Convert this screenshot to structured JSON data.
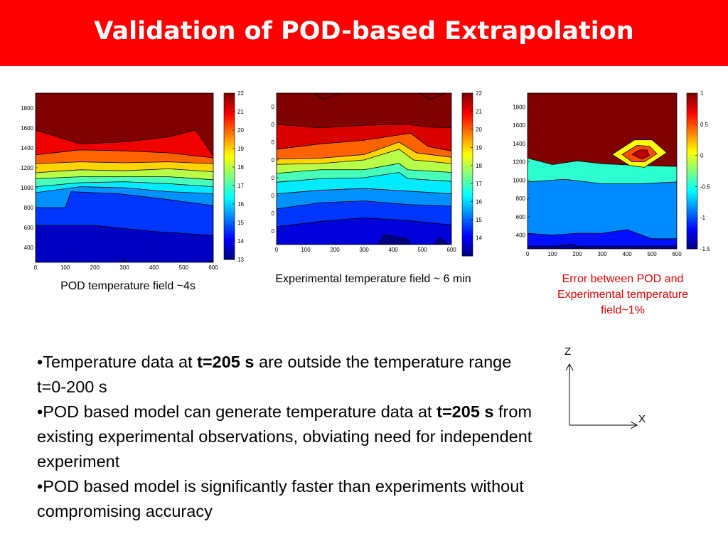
{
  "slide": {
    "title": "Validation of POD-based Extrapolation",
    "colors": {
      "header": "#fe0000",
      "title_text": "#ffffff",
      "error_caption": "#e60000"
    }
  },
  "chart_data": [
    {
      "type": "heatmap",
      "subtype": "filled contour",
      "caption": "POD temperature field ~4s",
      "xticks": [
        "0",
        "100",
        "200",
        "300",
        "400",
        "500",
        "600"
      ],
      "yticks": [
        "400",
        "600",
        "800",
        "1000",
        "1200",
        "1400",
        "1600",
        "1800"
      ],
      "xlim": [
        0,
        600
      ],
      "ylim": [
        250,
        1950
      ],
      "colorbar": {
        "min": 13,
        "max": 22,
        "ticks": [
          "13",
          "14",
          "15",
          "16",
          "17",
          "18",
          "19",
          "20",
          "21",
          "22"
        ]
      },
      "bands": [
        {
          "v": 13.6,
          "top": [
            [
              0,
              620
            ],
            [
              200,
              620
            ],
            [
              400,
              560
            ],
            [
              600,
              520
            ]
          ]
        },
        {
          "v": 14.6,
          "top": [
            [
              0,
              800
            ],
            [
              100,
              800
            ],
            [
              120,
              960
            ],
            [
              280,
              940
            ],
            [
              450,
              880
            ],
            [
              600,
              820
            ]
          ]
        },
        {
          "v": 15.4,
          "top": [
            [
              0,
              950
            ],
            [
              150,
              1010
            ],
            [
              300,
              1000
            ],
            [
              450,
              960
            ],
            [
              600,
              940
            ]
          ]
        },
        {
          "v": 16.2,
          "top": [
            [
              0,
              1010
            ],
            [
              150,
              1050
            ],
            [
              300,
              1060
            ],
            [
              450,
              1040
            ],
            [
              600,
              1010
            ]
          ]
        },
        {
          "v": 17.0,
          "top": [
            [
              0,
              1090
            ],
            [
              150,
              1110
            ],
            [
              300,
              1110
            ],
            [
              450,
              1110
            ],
            [
              600,
              1080
            ]
          ]
        },
        {
          "v": 18.0,
          "top": [
            [
              0,
              1150
            ],
            [
              150,
              1180
            ],
            [
              300,
              1170
            ],
            [
              450,
              1190
            ],
            [
              600,
              1160
            ]
          ]
        },
        {
          "v": 19.0,
          "top": [
            [
              0,
              1240
            ],
            [
              150,
              1260
            ],
            [
              300,
              1250
            ],
            [
              450,
              1260
            ],
            [
              600,
              1240
            ]
          ]
        },
        {
          "v": 20.0,
          "top": [
            [
              0,
              1330
            ],
            [
              150,
              1380
            ],
            [
              300,
              1370
            ],
            [
              450,
              1350
            ],
            [
              600,
              1300
            ]
          ]
        },
        {
          "v": 21.0,
          "top": [
            [
              0,
              1580
            ],
            [
              150,
              1440
            ],
            [
              300,
              1460
            ],
            [
              450,
              1510
            ],
            [
              540,
              1580
            ],
            [
              600,
              1320
            ]
          ]
        }
      ],
      "blobs": [
        {
          "v": 12.8,
          "pts": [
            [
              290,
              250
            ],
            [
              300,
              275
            ],
            [
              310,
              250
            ]
          ]
        },
        {
          "v": 12.8,
          "pts": [
            [
              580,
              250
            ],
            [
              595,
              270
            ],
            [
              600,
              250
            ]
          ]
        }
      ]
    },
    {
      "type": "heatmap",
      "subtype": "filled contour",
      "caption": "Experimental temperature field ~ 6 min",
      "xticks": [
        "0",
        "100",
        "200",
        "300",
        "400",
        "500",
        "600"
      ],
      "yticks": [
        "0",
        "0",
        "0",
        "0",
        "0",
        "0",
        "0",
        "0"
      ],
      "xlim": [
        0,
        600
      ],
      "ylim": [
        250,
        1950
      ],
      "colorbar": {
        "min": 13,
        "max": 22,
        "ticks": [
          "14",
          "15",
          "16",
          "17",
          "18",
          "19",
          "20",
          "21",
          "22"
        ]
      },
      "bands": [
        {
          "v": 13.8,
          "top": [
            [
              0,
              450
            ],
            [
              150,
              510
            ],
            [
              300,
              550
            ],
            [
              450,
              520
            ],
            [
              600,
              470
            ]
          ]
        },
        {
          "v": 14.6,
          "top": [
            [
              0,
              650
            ],
            [
              150,
              720
            ],
            [
              300,
              740
            ],
            [
              450,
              700
            ],
            [
              600,
              680
            ]
          ]
        },
        {
          "v": 15.4,
          "top": [
            [
              0,
              820
            ],
            [
              150,
              860
            ],
            [
              300,
              880
            ],
            [
              450,
              850
            ],
            [
              600,
              820
            ]
          ]
        },
        {
          "v": 16.2,
          "top": [
            [
              0,
              950
            ],
            [
              150,
              990
            ],
            [
              300,
              1000
            ],
            [
              420,
              1060
            ],
            [
              450,
              990
            ],
            [
              600,
              960
            ]
          ]
        },
        {
          "v": 17.0,
          "top": [
            [
              0,
              1050
            ],
            [
              150,
              1090
            ],
            [
              300,
              1090
            ],
            [
              420,
              1160
            ],
            [
              450,
              1090
            ],
            [
              600,
              1060
            ]
          ]
        },
        {
          "v": 18.0,
          "top": [
            [
              0,
              1150
            ],
            [
              150,
              1160
            ],
            [
              300,
              1200
            ],
            [
              420,
              1320
            ],
            [
              470,
              1200
            ],
            [
              600,
              1160
            ]
          ]
        },
        {
          "v": 19.0,
          "top": [
            [
              0,
              1210
            ],
            [
              150,
              1220
            ],
            [
              300,
              1260
            ],
            [
              420,
              1400
            ],
            [
              480,
              1280
            ],
            [
              600,
              1230
            ]
          ]
        },
        {
          "v": 20.0,
          "top": [
            [
              0,
              1320
            ],
            [
              150,
              1380
            ],
            [
              300,
              1420
            ],
            [
              460,
              1500
            ],
            [
              520,
              1350
            ],
            [
              600,
              1300
            ]
          ]
        },
        {
          "v": 21.2,
          "top": [
            [
              0,
              1600
            ],
            [
              150,
              1560
            ],
            [
              300,
              1590
            ],
            [
              450,
              1600
            ],
            [
              520,
              1570
            ],
            [
              600,
              1560
            ]
          ]
        }
      ],
      "blobs": [
        {
          "v": 22.6,
          "pts": [
            [
              130,
              1950
            ],
            [
              160,
              1880
            ],
            [
              220,
              1950
            ]
          ]
        },
        {
          "v": 22.6,
          "pts": [
            [
              490,
              1950
            ],
            [
              530,
              1880
            ],
            [
              580,
              1950
            ]
          ]
        },
        {
          "v": 13.0,
          "pts": [
            [
              350,
              250
            ],
            [
              370,
              360
            ],
            [
              450,
              310
            ],
            [
              460,
              250
            ]
          ]
        },
        {
          "v": 13.0,
          "pts": [
            [
              540,
              250
            ],
            [
              560,
              330
            ],
            [
              590,
              250
            ]
          ]
        }
      ]
    },
    {
      "type": "heatmap",
      "subtype": "filled contour",
      "caption": "Error between POD and Experimental temperature field~1%",
      "xticks": [
        "0",
        "100",
        "200",
        "300",
        "400",
        "500",
        "600"
      ],
      "yticks": [
        "400",
        "600",
        "800",
        "1000",
        "1200",
        "1400",
        "1600",
        "1800"
      ],
      "xlim": [
        0,
        600
      ],
      "ylim": [
        250,
        1950
      ],
      "colorbar": {
        "min": -1.5,
        "max": 1,
        "ticks": [
          "-1.5",
          "-1",
          "-0.5",
          "0",
          "0.5",
          "1"
        ]
      },
      "bands": [
        {
          "v": -1.45,
          "top": [
            [
              0,
              280
            ],
            [
              150,
              280
            ],
            [
              300,
              280
            ],
            [
              450,
              280
            ],
            [
              600,
              280
            ]
          ]
        },
        {
          "v": -1.15,
          "top": [
            [
              0,
              420
            ],
            [
              100,
              400
            ],
            [
              200,
              420
            ],
            [
              300,
              420
            ],
            [
              400,
              460
            ],
            [
              500,
              360
            ],
            [
              600,
              360
            ]
          ]
        },
        {
          "v": -0.85,
          "top": [
            [
              0,
              980
            ],
            [
              150,
              1010
            ],
            [
              300,
              960
            ],
            [
              450,
              960
            ],
            [
              600,
              980
            ]
          ]
        },
        {
          "v": -0.45,
          "top": [
            [
              0,
              1240
            ],
            [
              100,
              1170
            ],
            [
              200,
              1210
            ],
            [
              300,
              1180
            ],
            [
              450,
              1160
            ],
            [
              600,
              1150
            ]
          ]
        }
      ],
      "blobs": [
        {
          "v": -1.45,
          "pts": [
            [
              110,
              250
            ],
            [
              130,
              290
            ],
            [
              180,
              300
            ],
            [
              220,
              250
            ]
          ]
        },
        {
          "v": 0.05,
          "pts": [
            [
              340,
              1280
            ],
            [
              430,
              1440
            ],
            [
              500,
              1440
            ],
            [
              560,
              1300
            ],
            [
              470,
              1140
            ],
            [
              410,
              1160
            ]
          ]
        },
        {
          "v": 0.5,
          "pts": [
            [
              380,
              1280
            ],
            [
              440,
              1380
            ],
            [
              490,
              1370
            ],
            [
              520,
              1290
            ],
            [
              470,
              1200
            ],
            [
              420,
              1200
            ]
          ]
        },
        {
          "v": 0.85,
          "pts": [
            [
              420,
              1280
            ],
            [
              450,
              1330
            ],
            [
              480,
              1330
            ],
            [
              490,
              1270
            ],
            [
              460,
              1230
            ]
          ]
        }
      ]
    }
  ],
  "axis_diagram": {
    "z_label": "Z",
    "x_label": "X"
  },
  "bullets": {
    "b1_pre": "•Temperature data at ",
    "b1_bold": "t=205 s",
    "b1_post": " are outside the temperature range t=0-200 s",
    "b2_pre": "•POD based model can generate temperature data at ",
    "b2_bold": "t=205 s",
    "b2_post": " from existing experimental observations, obviating need for independent experiment",
    "b3": "•POD based model is significantly faster than experiments without compromising accuracy"
  }
}
